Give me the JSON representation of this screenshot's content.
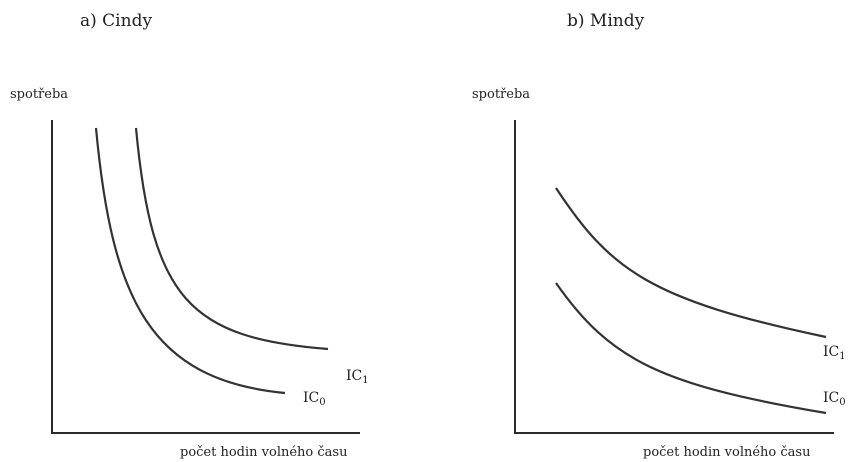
{
  "panels": [
    {
      "title": "a) Cindy",
      "y_label": "spotřeba",
      "x_label": "počet hodin volného času",
      "curves": [
        {
          "label": "IC",
          "sub": "0"
        },
        {
          "label": "IC",
          "sub": "1"
        }
      ]
    },
    {
      "title": "b) Mindy",
      "y_label": "spotřeba",
      "x_label": "počet hodin volného času",
      "curves": [
        {
          "label": "IC",
          "sub": "1"
        },
        {
          "label": "IC",
          "sub": "0"
        }
      ]
    }
  ]
}
